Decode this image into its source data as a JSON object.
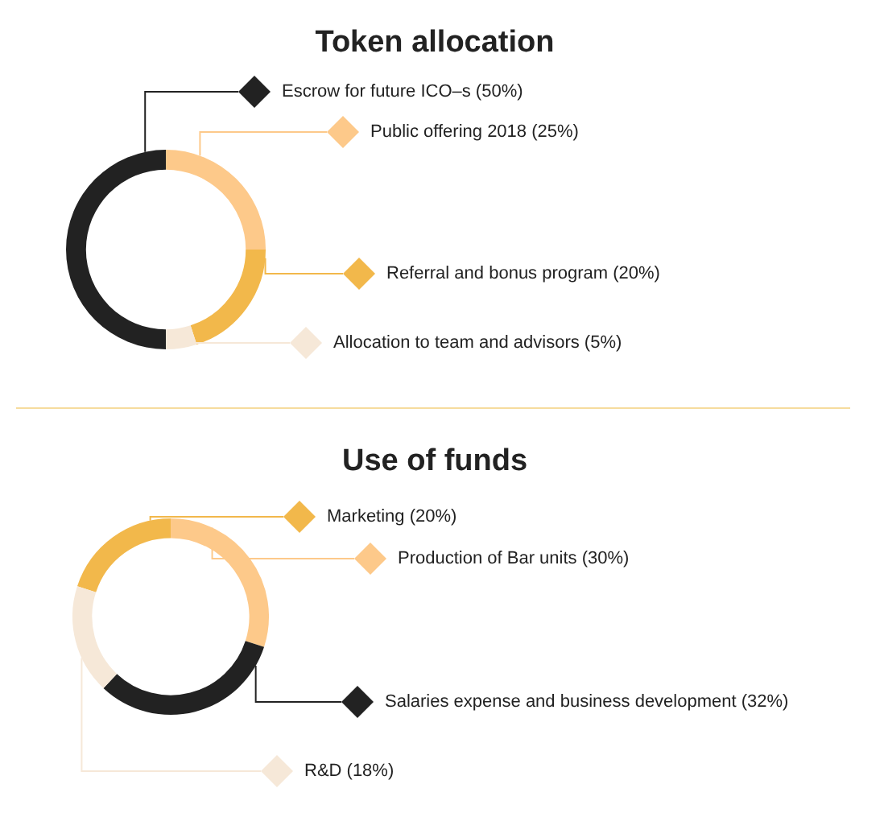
{
  "chart_data": [
    {
      "type": "donut",
      "title": "Token allocation",
      "categories": [
        "Escrow for future ICO–s",
        "Public offering 2018",
        "Referral and bonus program",
        "Allocation to team and advisors"
      ],
      "values": [
        50,
        25,
        20,
        5
      ],
      "value_labels": [
        "(50%)",
        "(25%)",
        "(20%)",
        "(5%)"
      ],
      "colors": [
        "#222222",
        "#fdc98a",
        "#f2b84b",
        "#f6e8d8"
      ],
      "legend": "right"
    },
    {
      "type": "donut",
      "title": "Use of funds",
      "categories": [
        "Marketing",
        "Production of Bar units",
        "Salaries expense and business development",
        "R&D"
      ],
      "values": [
        20,
        30,
        32,
        18
      ],
      "value_labels": [
        "(20%)",
        "(30%)",
        "(32%)",
        "(18%)"
      ],
      "colors": [
        "#f2b84b",
        "#fdc98a",
        "#222222",
        "#f6e8d8"
      ],
      "legend": "right"
    }
  ]
}
